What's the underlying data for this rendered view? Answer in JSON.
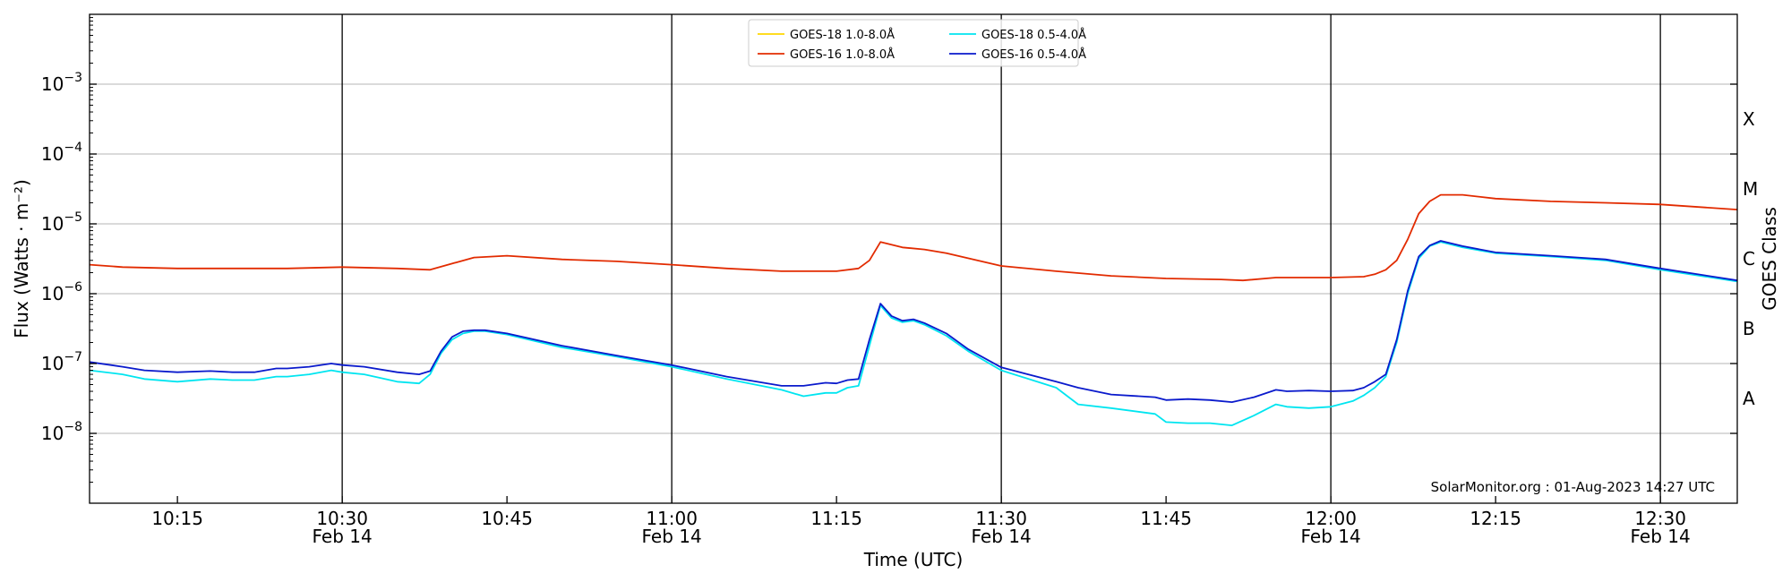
{
  "chart_data": {
    "type": "line",
    "title": "",
    "xlabel": "Time (UTC)",
    "ylabel": "Flux (Watts · m⁻²)",
    "y2label": "GOES Class",
    "yscale": "log",
    "ylim": [
      1e-09,
      0.01
    ],
    "xlim": [
      "10:07",
      "12:37"
    ],
    "grid": "horizontal",
    "legend_position": "top-center",
    "credit": "SolarMonitor.org : 01-Aug-2023 14:27 UTC",
    "y_ticks": [
      {
        "value": 1e-08,
        "base": "10",
        "exp": "−8"
      },
      {
        "value": 1e-07,
        "base": "10",
        "exp": "−7"
      },
      {
        "value": 1e-06,
        "base": "10",
        "exp": "−6"
      },
      {
        "value": 1e-05,
        "base": "10",
        "exp": "−5"
      },
      {
        "value": 0.0001,
        "base": "10",
        "exp": "−4"
      },
      {
        "value": 0.001,
        "base": "10",
        "exp": "−3"
      }
    ],
    "x_ticks": [
      {
        "time": "10:15",
        "label": "10:15",
        "date": ""
      },
      {
        "time": "10:30",
        "label": "10:30",
        "date": "Feb 14",
        "vline": true
      },
      {
        "time": "10:45",
        "label": "10:45",
        "date": ""
      },
      {
        "time": "11:00",
        "label": "11:00",
        "date": "Feb 14",
        "vline": true
      },
      {
        "time": "11:15",
        "label": "11:15",
        "date": ""
      },
      {
        "time": "11:30",
        "label": "11:30",
        "date": "Feb 14",
        "vline": true
      },
      {
        "time": "11:45",
        "label": "11:45",
        "date": ""
      },
      {
        "time": "12:00",
        "label": "12:00",
        "date": "Feb 14",
        "vline": true
      },
      {
        "time": "12:15",
        "label": "12:15",
        "date": ""
      },
      {
        "time": "12:30",
        "label": "12:30",
        "date": "Feb 14",
        "vline": true
      }
    ],
    "goes_classes": [
      {
        "label": "A",
        "value": 3.16e-08
      },
      {
        "label": "B",
        "value": 3.16e-07
      },
      {
        "label": "C",
        "value": 3.16e-06
      },
      {
        "label": "M",
        "value": 3.16e-05
      },
      {
        "label": "X",
        "value": 0.000316
      }
    ],
    "series": [
      {
        "name": "GOES-18 1.0-8.0Å",
        "color": "#ffd700",
        "x": [],
        "values": []
      },
      {
        "name": "GOES-16 1.0-8.0Å",
        "color": "#e22b00",
        "x": [
          "10:07",
          "10:10",
          "10:15",
          "10:20",
          "10:25",
          "10:30",
          "10:35",
          "10:38",
          "10:40",
          "10:42",
          "10:45",
          "10:50",
          "10:55",
          "11:00",
          "11:05",
          "11:10",
          "11:15",
          "11:17",
          "11:18",
          "11:19",
          "11:21",
          "11:23",
          "11:25",
          "11:30",
          "11:35",
          "11:40",
          "11:45",
          "11:50",
          "11:52",
          "11:55",
          "12:00",
          "12:03",
          "12:04",
          "12:05",
          "12:06",
          "12:07",
          "12:08",
          "12:09",
          "12:10",
          "12:12",
          "12:15",
          "12:20",
          "12:25",
          "12:30",
          "12:37"
        ],
        "values": [
          2.6e-06,
          2.4e-06,
          2.3e-06,
          2.3e-06,
          2.3e-06,
          2.4e-06,
          2.3e-06,
          2.2e-06,
          2.7e-06,
          3.3e-06,
          3.5e-06,
          3.1e-06,
          2.9e-06,
          2.6e-06,
          2.3e-06,
          2.1e-06,
          2.1e-06,
          2.3e-06,
          3e-06,
          5.5e-06,
          4.6e-06,
          4.3e-06,
          3.8e-06,
          2.5e-06,
          2.1e-06,
          1.8e-06,
          1.65e-06,
          1.6e-06,
          1.55e-06,
          1.7e-06,
          1.7e-06,
          1.75e-06,
          1.9e-06,
          2.2e-06,
          3e-06,
          6e-06,
          1.4e-05,
          2.1e-05,
          2.6e-05,
          2.6e-05,
          2.3e-05,
          2.1e-05,
          2e-05,
          1.9e-05,
          1.6e-05
        ]
      },
      {
        "name": "GOES-18 0.5-4.0Å",
        "color": "#00e5f0",
        "x": [
          "10:07",
          "10:10",
          "10:12",
          "10:15",
          "10:18",
          "10:20",
          "10:22",
          "10:24",
          "10:25",
          "10:27",
          "10:29",
          "10:30",
          "10:32",
          "10:35",
          "10:37",
          "10:38",
          "10:39",
          "10:40",
          "10:41",
          "10:42",
          "10:43",
          "10:45",
          "10:50",
          "10:55",
          "11:00",
          "11:05",
          "11:10",
          "11:12",
          "11:14",
          "11:15",
          "11:16",
          "11:17",
          "11:18",
          "11:19",
          "11:20",
          "11:21",
          "11:22",
          "11:23",
          "11:25",
          "11:27",
          "11:30",
          "11:35",
          "11:37",
          "11:40",
          "11:44",
          "11:45",
          "11:47",
          "11:49",
          "11:51",
          "11:53",
          "11:55",
          "11:56",
          "11:58",
          "12:00",
          "12:02",
          "12:03",
          "12:04",
          "12:05",
          "12:06",
          "12:07",
          "12:08",
          "12:09",
          "12:10",
          "12:12",
          "12:15",
          "12:20",
          "12:25",
          "12:30",
          "12:37"
        ],
        "values": [
          8e-08,
          7e-08,
          6e-08,
          5.5e-08,
          6e-08,
          5.8e-08,
          5.8e-08,
          6.5e-08,
          6.5e-08,
          7e-08,
          8e-08,
          7.5e-08,
          7e-08,
          5.5e-08,
          5.2e-08,
          7e-08,
          1.4e-07,
          2.2e-07,
          2.7e-07,
          2.9e-07,
          2.9e-07,
          2.6e-07,
          1.7e-07,
          1.25e-07,
          9e-08,
          6e-08,
          4.2e-08,
          3.4e-08,
          3.8e-08,
          3.8e-08,
          4.5e-08,
          4.8e-08,
          1.8e-07,
          6.8e-07,
          4.5e-07,
          3.9e-07,
          4.1e-07,
          3.6e-07,
          2.5e-07,
          1.5e-07,
          8e-08,
          4.5e-08,
          2.6e-08,
          2.3e-08,
          1.9e-08,
          1.45e-08,
          1.4e-08,
          1.4e-08,
          1.3e-08,
          1.8e-08,
          2.6e-08,
          2.4e-08,
          2.3e-08,
          2.4e-08,
          2.9e-08,
          3.5e-08,
          4.5e-08,
          6.5e-08,
          2e-07,
          1e-06,
          3.2e-06,
          4.8e-06,
          5.5e-06,
          4.6e-06,
          3.8e-06,
          3.4e-06,
          3e-06,
          2.2e-06,
          1.5e-06
        ]
      },
      {
        "name": "GOES-16 0.5-4.0Å",
        "color": "#0a1acc",
        "x": [
          "10:07",
          "10:10",
          "10:12",
          "10:15",
          "10:18",
          "10:20",
          "10:22",
          "10:24",
          "10:25",
          "10:27",
          "10:29",
          "10:30",
          "10:32",
          "10:35",
          "10:37",
          "10:38",
          "10:39",
          "10:40",
          "10:41",
          "10:42",
          "10:43",
          "10:45",
          "10:50",
          "10:55",
          "11:00",
          "11:05",
          "11:10",
          "11:12",
          "11:14",
          "11:15",
          "11:16",
          "11:17",
          "11:18",
          "11:19",
          "11:20",
          "11:21",
          "11:22",
          "11:23",
          "11:25",
          "11:27",
          "11:30",
          "11:35",
          "11:37",
          "11:40",
          "11:44",
          "11:45",
          "11:47",
          "11:49",
          "11:51",
          "11:53",
          "11:55",
          "11:56",
          "11:58",
          "12:00",
          "12:02",
          "12:03",
          "12:04",
          "12:05",
          "12:06",
          "12:07",
          "12:08",
          "12:09",
          "12:10",
          "12:12",
          "12:15",
          "12:20",
          "12:25",
          "12:30",
          "12:37"
        ],
        "values": [
          1.05e-07,
          9e-08,
          8e-08,
          7.5e-08,
          7.8e-08,
          7.5e-08,
          7.5e-08,
          8.5e-08,
          8.5e-08,
          9e-08,
          1e-07,
          9.5e-08,
          9e-08,
          7.5e-08,
          7e-08,
          7.8e-08,
          1.5e-07,
          2.4e-07,
          2.9e-07,
          3e-07,
          3e-07,
          2.7e-07,
          1.8e-07,
          1.3e-07,
          9.5e-08,
          6.5e-08,
          4.8e-08,
          4.8e-08,
          5.3e-08,
          5.2e-08,
          5.8e-08,
          6e-08,
          2.2e-07,
          7.2e-07,
          4.8e-07,
          4.1e-07,
          4.3e-07,
          3.8e-07,
          2.7e-07,
          1.6e-07,
          8.8e-08,
          5.5e-08,
          4.5e-08,
          3.6e-08,
          3.3e-08,
          3e-08,
          3.1e-08,
          3e-08,
          2.8e-08,
          3.3e-08,
          4.2e-08,
          4e-08,
          4.1e-08,
          4e-08,
          4.1e-08,
          4.5e-08,
          5.5e-08,
          7e-08,
          2.2e-07,
          1.1e-06,
          3.4e-06,
          4.9e-06,
          5.7e-06,
          4.8e-06,
          3.9e-06,
          3.5e-06,
          3.1e-06,
          2.3e-06,
          1.55e-06
        ]
      }
    ],
    "legend": {
      "items": [
        {
          "label": "GOES-18 1.0-8.0Å",
          "color": "#ffd700"
        },
        {
          "label": "GOES-18 0.5-4.0Å",
          "color": "#00e5f0"
        },
        {
          "label": "GOES-16 1.0-8.0Å",
          "color": "#e22b00"
        },
        {
          "label": "GOES-16 0.5-4.0Å",
          "color": "#0a1acc"
        }
      ]
    }
  }
}
